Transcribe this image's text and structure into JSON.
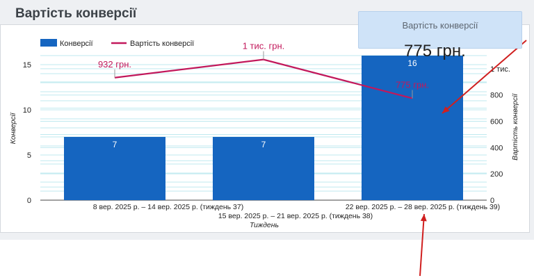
{
  "page": {
    "title": "Вартість конверсії"
  },
  "tooltip": {
    "title": "Вартість конверсії",
    "value": "775 грн."
  },
  "colors": {
    "bar": "#1565c0",
    "line": "#c2185b",
    "arrow": "#d01f1f",
    "grid": "#bfe9ef",
    "axis_text": "#222222"
  },
  "chart_data": {
    "type": "bar",
    "title": "Вартість конверсії",
    "categories": [
      "8 вер. 2025 р. – 14 вер. 2025 р. (тиждень 37)",
      "15 вер. 2025 р. – 21 вер. 2025 р. (тиждень 38)",
      "22 вер. 2025 р. – 28 вер. 2025 р. (тиждень 39)"
    ],
    "xlabel": "Тиждень",
    "legend_position": "top-left",
    "series": [
      {
        "name": "Конверсії",
        "type": "bar",
        "axis": "left",
        "values": [
          7,
          7,
          16
        ],
        "labels": [
          "7",
          "7",
          "16"
        ]
      },
      {
        "name": "Вартість конверсії",
        "type": "line",
        "axis": "right",
        "values": [
          932,
          1070,
          775
        ],
        "labels": [
          "932 грн.",
          "1 тис. грн.",
          "775 грн."
        ]
      }
    ],
    "y_left": {
      "label": "Конверсії",
      "ylim": [
        0,
        16
      ],
      "ticks": [
        "0",
        "5",
        "10",
        "15"
      ],
      "tick_values": [
        0,
        5,
        10,
        15
      ]
    },
    "y_right": {
      "label": "Вартість конверсії",
      "ylim": [
        0,
        1100
      ],
      "ticks": [
        "0",
        "200",
        "400",
        "600",
        "800",
        "1 тис."
      ],
      "tick_values": [
        0,
        200,
        400,
        600,
        800,
        1000
      ]
    }
  }
}
